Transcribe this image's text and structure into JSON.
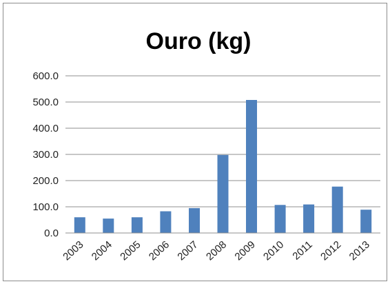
{
  "chart_data": {
    "type": "bar",
    "title": "Ouro (kg)",
    "xlabel": "",
    "ylabel": "",
    "categories": [
      "2003",
      "2004",
      "2005",
      "2006",
      "2007",
      "2008",
      "2009",
      "2010",
      "2011",
      "2012",
      "2013"
    ],
    "values": [
      60,
      55,
      60,
      83,
      95,
      298,
      508,
      107,
      109,
      177,
      89
    ],
    "ylim": [
      0,
      600
    ],
    "yticks": [
      "0.0",
      "100.0",
      "200.0",
      "300.0",
      "400.0",
      "500.0",
      "600.0"
    ],
    "grid": true,
    "legend": "none",
    "colors": {
      "bar": "#4f81bd",
      "grid": "#8f8f8f",
      "axis": "#8f8f8f",
      "border": "#8c8c8c"
    }
  }
}
